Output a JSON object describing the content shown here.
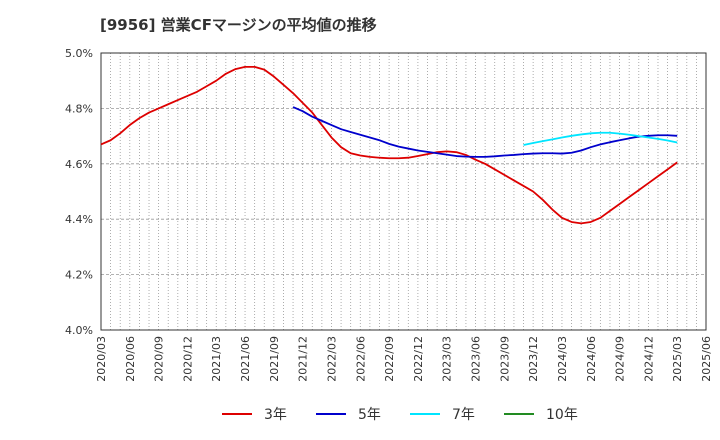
{
  "chart_data": {
    "type": "line",
    "title": "[9956]  営業CFマージンの平均値の推移",
    "ylim": [
      4.0,
      5.0
    ],
    "yticks": [
      "4.0%",
      "4.2%",
      "4.4%",
      "4.6%",
      "4.8%",
      "5.0%"
    ],
    "yticks_values": [
      4.0,
      4.2,
      4.4,
      4.6,
      4.8,
      5.0
    ],
    "x_range": [
      "2020/03",
      "2025/06"
    ],
    "xticks": [
      "2020/03",
      "2020/06",
      "2020/09",
      "2020/12",
      "2021/03",
      "2021/06",
      "2021/09",
      "2021/12",
      "2022/03",
      "2022/06",
      "2022/09",
      "2022/12",
      "2023/03",
      "2023/06",
      "2023/09",
      "2023/12",
      "2024/03",
      "2024/06",
      "2024/09",
      "2024/12",
      "2025/03",
      "2025/06"
    ],
    "grid": true,
    "legend_position": "bottom",
    "series": [
      {
        "name": "3年",
        "color": "#dd0000",
        "points": [
          [
            "2020/03",
            4.67
          ],
          [
            "2020/04",
            4.685
          ],
          [
            "2020/05",
            4.71
          ],
          [
            "2020/06",
            4.74
          ],
          [
            "2020/07",
            4.765
          ],
          [
            "2020/08",
            4.785
          ],
          [
            "2020/09",
            4.8
          ],
          [
            "2020/10",
            4.815
          ],
          [
            "2020/11",
            4.83
          ],
          [
            "2020/12",
            4.845
          ],
          [
            "2021/01",
            4.86
          ],
          [
            "2021/02",
            4.88
          ],
          [
            "2021/03",
            4.9
          ],
          [
            "2021/04",
            4.925
          ],
          [
            "2021/05",
            4.942
          ],
          [
            "2021/06",
            4.95
          ],
          [
            "2021/07",
            4.95
          ],
          [
            "2021/08",
            4.94
          ],
          [
            "2021/09",
            4.915
          ],
          [
            "2021/10",
            4.885
          ],
          [
            "2021/11",
            4.855
          ],
          [
            "2021/12",
            4.82
          ],
          [
            "2022/01",
            4.785
          ],
          [
            "2022/02",
            4.74
          ],
          [
            "2022/03",
            4.695
          ],
          [
            "2022/04",
            4.66
          ],
          [
            "2022/05",
            4.638
          ],
          [
            "2022/06",
            4.63
          ],
          [
            "2022/07",
            4.625
          ],
          [
            "2022/08",
            4.622
          ],
          [
            "2022/09",
            4.62
          ],
          [
            "2022/10",
            4.62
          ],
          [
            "2022/11",
            4.622
          ],
          [
            "2022/12",
            4.628
          ],
          [
            "2023/01",
            4.635
          ],
          [
            "2023/02",
            4.642
          ],
          [
            "2023/03",
            4.645
          ],
          [
            "2023/04",
            4.642
          ],
          [
            "2023/05",
            4.632
          ],
          [
            "2023/06",
            4.615
          ],
          [
            "2023/07",
            4.6
          ],
          [
            "2023/08",
            4.58
          ],
          [
            "2023/09",
            4.56
          ],
          [
            "2023/10",
            4.54
          ],
          [
            "2023/11",
            4.52
          ],
          [
            "2023/12",
            4.5
          ],
          [
            "2024/01",
            4.47
          ],
          [
            "2024/02",
            4.435
          ],
          [
            "2024/03",
            4.405
          ],
          [
            "2024/04",
            4.39
          ],
          [
            "2024/05",
            4.385
          ],
          [
            "2024/06",
            4.39
          ],
          [
            "2024/07",
            4.405
          ],
          [
            "2024/08",
            4.43
          ],
          [
            "2024/09",
            4.455
          ],
          [
            "2024/10",
            4.48
          ],
          [
            "2024/11",
            4.505
          ],
          [
            "2024/12",
            4.53
          ],
          [
            "2025/01",
            4.555
          ],
          [
            "2025/02",
            4.58
          ],
          [
            "2025/03",
            4.605
          ]
        ]
      },
      {
        "name": "5年",
        "color": "#0000cc",
        "points": [
          [
            "2021/11",
            4.805
          ],
          [
            "2021/12",
            4.79
          ],
          [
            "2022/01",
            4.77
          ],
          [
            "2022/02",
            4.755
          ],
          [
            "2022/03",
            4.74
          ],
          [
            "2022/04",
            4.725
          ],
          [
            "2022/05",
            4.715
          ],
          [
            "2022/06",
            4.705
          ],
          [
            "2022/07",
            4.695
          ],
          [
            "2022/08",
            4.685
          ],
          [
            "2022/09",
            4.672
          ],
          [
            "2022/10",
            4.662
          ],
          [
            "2022/11",
            4.655
          ],
          [
            "2022/12",
            4.648
          ],
          [
            "2023/01",
            4.643
          ],
          [
            "2023/02",
            4.638
          ],
          [
            "2023/03",
            4.633
          ],
          [
            "2023/04",
            4.628
          ],
          [
            "2023/05",
            4.626
          ],
          [
            "2023/06",
            4.625
          ],
          [
            "2023/07",
            4.625
          ],
          [
            "2023/08",
            4.627
          ],
          [
            "2023/09",
            4.63
          ],
          [
            "2023/10",
            4.632
          ],
          [
            "2023/11",
            4.635
          ],
          [
            "2023/12",
            4.637
          ],
          [
            "2024/01",
            4.638
          ],
          [
            "2024/02",
            4.638
          ],
          [
            "2024/03",
            4.637
          ],
          [
            "2024/04",
            4.64
          ],
          [
            "2024/05",
            4.648
          ],
          [
            "2024/06",
            4.66
          ],
          [
            "2024/07",
            4.67
          ],
          [
            "2024/08",
            4.678
          ],
          [
            "2024/09",
            4.685
          ],
          [
            "2024/10",
            4.692
          ],
          [
            "2024/11",
            4.698
          ],
          [
            "2024/12",
            4.701
          ],
          [
            "2025/01",
            4.703
          ],
          [
            "2025/02",
            4.703
          ],
          [
            "2025/03",
            4.701
          ]
        ]
      },
      {
        "name": "7年",
        "color": "#00e5ff",
        "points": [
          [
            "2023/11",
            4.668
          ],
          [
            "2023/12",
            4.675
          ],
          [
            "2024/01",
            4.682
          ],
          [
            "2024/02",
            4.688
          ],
          [
            "2024/03",
            4.695
          ],
          [
            "2024/04",
            4.701
          ],
          [
            "2024/05",
            4.706
          ],
          [
            "2024/06",
            4.71
          ],
          [
            "2024/07",
            4.712
          ],
          [
            "2024/08",
            4.712
          ],
          [
            "2024/09",
            4.709
          ],
          [
            "2024/10",
            4.705
          ],
          [
            "2024/11",
            4.7
          ],
          [
            "2024/12",
            4.695
          ],
          [
            "2025/01",
            4.69
          ],
          [
            "2025/02",
            4.684
          ],
          [
            "2025/03",
            4.677
          ]
        ]
      },
      {
        "name": "10年",
        "color": "#228B22",
        "points": []
      }
    ]
  }
}
